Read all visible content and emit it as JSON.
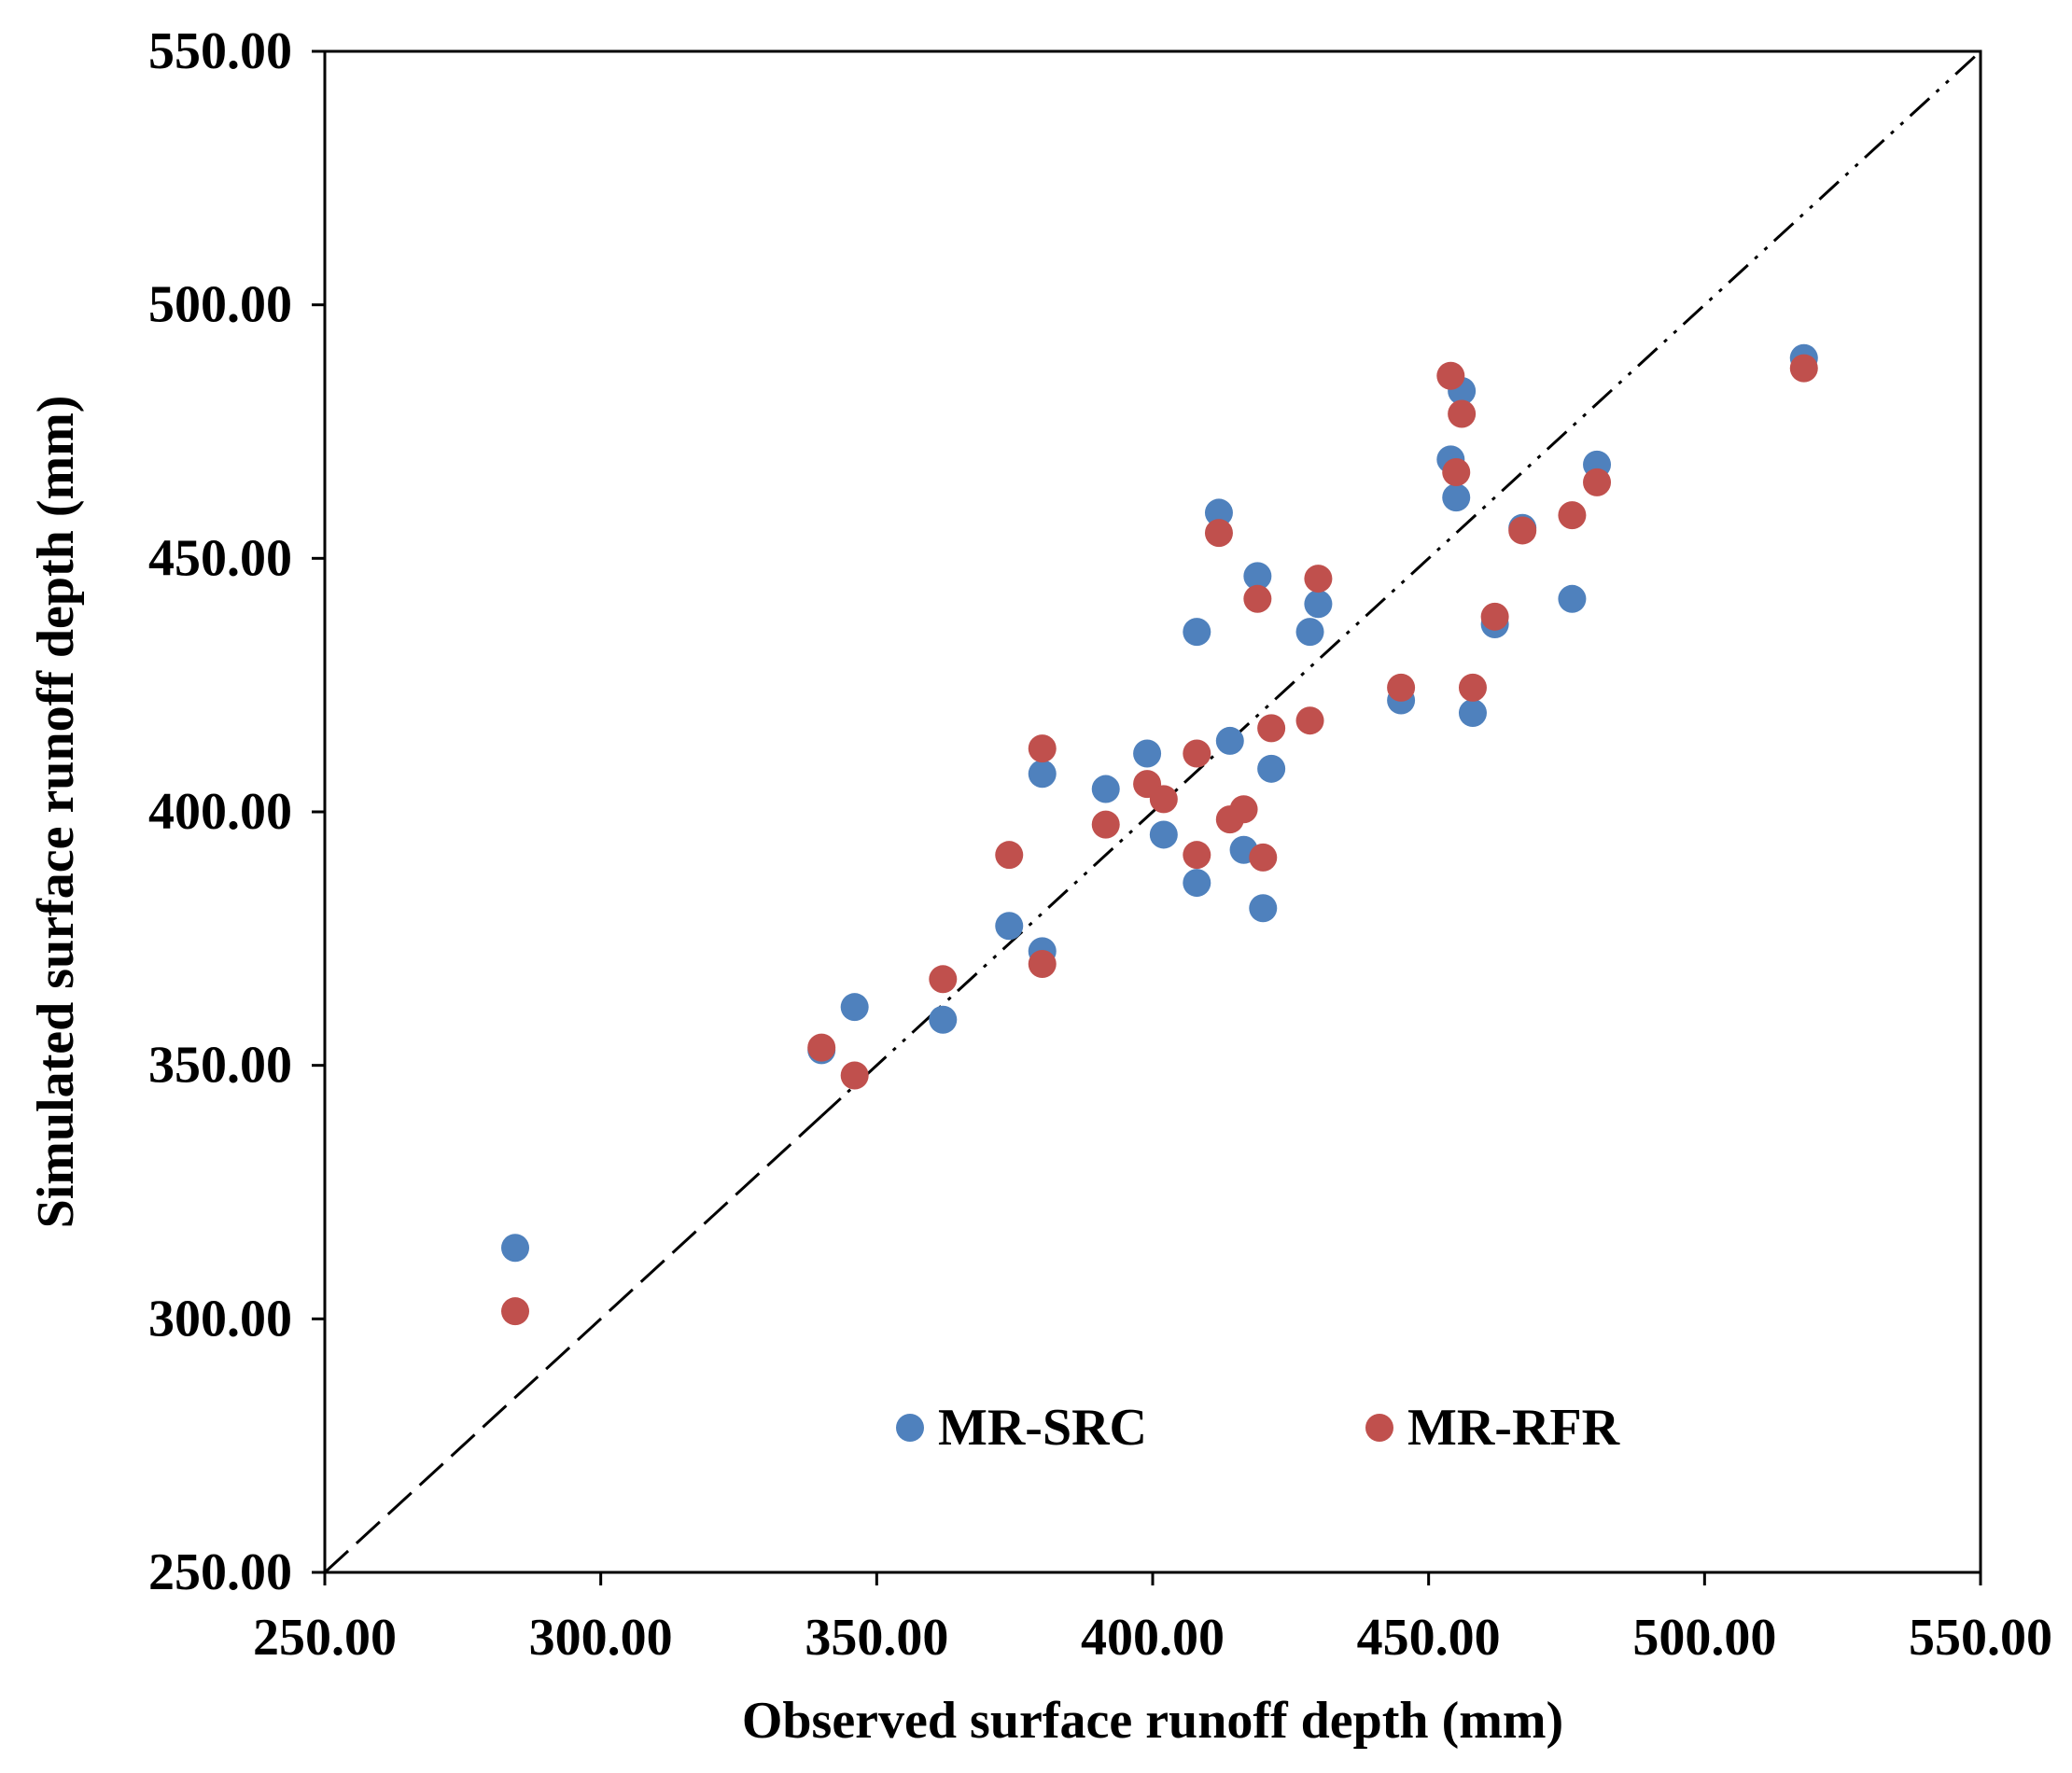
{
  "chart_data": {
    "type": "scatter",
    "title": "",
    "xlabel": "Observed surface runoff depth (mm)",
    "ylabel": "Simulated surface runoff depth (mm)",
    "xlim": [
      250,
      550
    ],
    "ylim": [
      250,
      550
    ],
    "xticks": [
      "250.00",
      "300.00",
      "350.00",
      "400.00",
      "450.00",
      "500.00",
      "550.00"
    ],
    "yticks": [
      "250.00",
      "300.00",
      "350.00",
      "400.00",
      "450.00",
      "500.00",
      "550.00"
    ],
    "reference_line": "1:1",
    "legend_position": "bottom-center",
    "series": [
      {
        "name": "MR-SRC",
        "color": "#4F81BD",
        "points": [
          [
            284.5,
            314
          ],
          [
            340,
            353
          ],
          [
            346,
            361.5
          ],
          [
            362,
            359
          ],
          [
            374,
            377.5
          ],
          [
            380,
            372.5
          ],
          [
            380,
            407.5
          ],
          [
            391.5,
            404.5
          ],
          [
            399,
            411.5
          ],
          [
            402,
            395.5
          ],
          [
            408,
            386
          ],
          [
            408,
            435.5
          ],
          [
            412,
            459
          ],
          [
            414,
            414
          ],
          [
            416.5,
            392.5
          ],
          [
            419,
            446.5
          ],
          [
            420,
            381
          ],
          [
            421.5,
            408.5
          ],
          [
            428.5,
            435.5
          ],
          [
            430,
            441
          ],
          [
            445,
            422
          ],
          [
            454,
            469.5
          ],
          [
            455,
            462
          ],
          [
            456,
            483
          ],
          [
            458,
            419.5
          ],
          [
            462,
            437
          ],
          [
            467,
            456
          ],
          [
            476,
            442
          ],
          [
            480.5,
            468.5
          ],
          [
            518,
            489.5
          ]
        ]
      },
      {
        "name": "MR-RFR",
        "color": "#C0504D",
        "points": [
          [
            284.5,
            301.5
          ],
          [
            340,
            353.5
          ],
          [
            346,
            348
          ],
          [
            362,
            367
          ],
          [
            374,
            391.5
          ],
          [
            380,
            370
          ],
          [
            380,
            412.5
          ],
          [
            391.5,
            397.5
          ],
          [
            399,
            405.5
          ],
          [
            402,
            402.5
          ],
          [
            408,
            391.5
          ],
          [
            408,
            411.5
          ],
          [
            412,
            455
          ],
          [
            414,
            398.5
          ],
          [
            416.5,
            400.5
          ],
          [
            419,
            442
          ],
          [
            420,
            391
          ],
          [
            421.5,
            416.5
          ],
          [
            428.5,
            418
          ],
          [
            430,
            446
          ],
          [
            445,
            424.5
          ],
          [
            454,
            486
          ],
          [
            455,
            467
          ],
          [
            456,
            478.5
          ],
          [
            458,
            424.5
          ],
          [
            462,
            438.5
          ],
          [
            467,
            455.5
          ],
          [
            476,
            458.5
          ],
          [
            480.5,
            465
          ],
          [
            518,
            487.5
          ]
        ]
      }
    ]
  }
}
